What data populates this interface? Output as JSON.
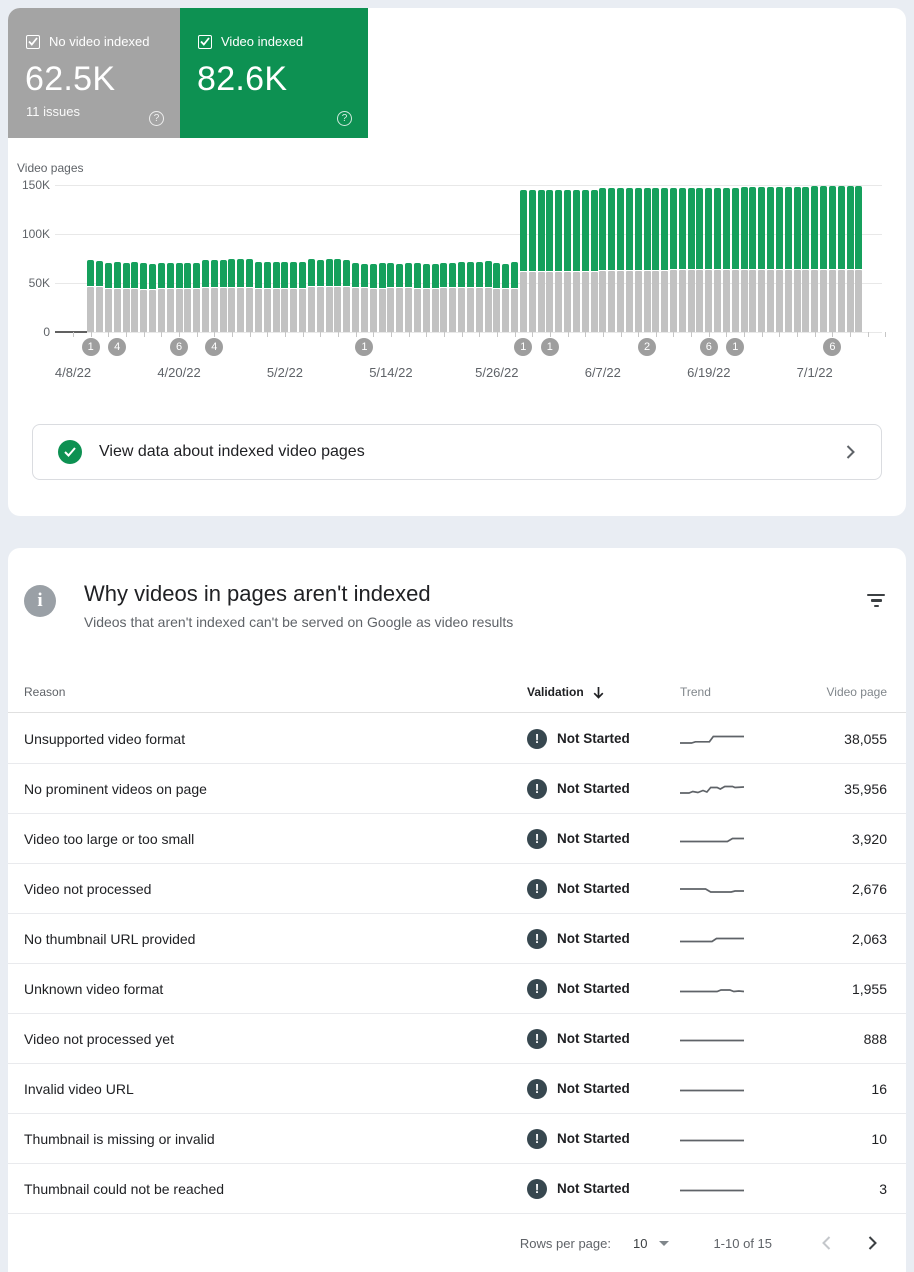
{
  "summary_cards": [
    {
      "label": "No video indexed",
      "value": "62.5K",
      "sub": "11 issues",
      "checked": true,
      "bg": "#a4a4a4"
    },
    {
      "label": "Video indexed",
      "value": "82.6K",
      "sub": "",
      "checked": true,
      "bg": "#0d9152"
    }
  ],
  "chart_data": {
    "type": "bar",
    "stacked": true,
    "title": "Video pages",
    "unit": "thousands of pages",
    "ylim_k": [
      0,
      150
    ],
    "yticks": [
      "150K",
      "100K",
      "50K",
      "0"
    ],
    "x_tick_labels": [
      {
        "day": 0,
        "label": "4/8/22"
      },
      {
        "day": 12,
        "label": "4/20/22"
      },
      {
        "day": 24,
        "label": "5/2/22"
      },
      {
        "day": 36,
        "label": "5/14/22"
      },
      {
        "day": 48,
        "label": "5/26/22"
      },
      {
        "day": 60,
        "label": "6/7/22"
      },
      {
        "day": 72,
        "label": "6/19/22"
      },
      {
        "day": 84,
        "label": "7/1/22"
      }
    ],
    "bars_start_day": 2,
    "series": [
      {
        "name": "No video indexed",
        "color": "#c2c2c2",
        "values_k": [
          46,
          46,
          44,
          44,
          43.5,
          43.5,
          43,
          43,
          43.5,
          43.5,
          43.5,
          43.5,
          43.5,
          44.5,
          44.5,
          45,
          45,
          45,
          45,
          44,
          44,
          44,
          44,
          44,
          44,
          46,
          46,
          46,
          46,
          46,
          44.5,
          44.5,
          44,
          44,
          44.5,
          44.5,
          44.5,
          44,
          44,
          44,
          44.5,
          44.5,
          45,
          45,
          44.5,
          44.5,
          44,
          43.5,
          43.5,
          61,
          61,
          61,
          61,
          61,
          61,
          61,
          61,
          61,
          62.5,
          62.5,
          62.5,
          62.5,
          62.5,
          62.5,
          62.5,
          62.5,
          63,
          63,
          63,
          63,
          63,
          63,
          63,
          63,
          63.5,
          63.5,
          63.5,
          63.5,
          63.5,
          63.5,
          63.5,
          63.5,
          63.5,
          63.5,
          63.5,
          63.5,
          63.5,
          63.5
        ]
      },
      {
        "name": "Video indexed",
        "color": "#15a05c",
        "values_k": [
          26,
          25,
          25.5,
          26,
          26,
          26.5,
          26,
          25.5,
          26,
          26,
          26,
          25.5,
          26,
          28.5,
          28.5,
          28,
          28.5,
          29,
          28.5,
          26.5,
          26.5,
          26,
          26.5,
          26.5,
          26,
          27.5,
          27,
          27.5,
          27.5,
          27,
          24.5,
          24,
          24.5,
          25,
          24.5,
          24,
          24.5,
          25,
          24.5,
          24,
          24.5,
          24.5,
          25,
          25.5,
          26,
          26.5,
          25,
          24.5,
          26.5,
          82.5,
          82.5,
          82.5,
          82.5,
          82.5,
          82.5,
          82.5,
          82.5,
          82.5,
          83,
          83,
          83,
          83,
          83,
          83,
          83,
          83,
          83.5,
          83.5,
          83.5,
          83.5,
          83.5,
          83.5,
          83.5,
          83.5,
          84,
          84,
          84,
          84,
          84,
          84,
          84,
          84,
          84.5,
          84.5,
          84.5,
          84.5,
          84.5,
          84.5
        ]
      }
    ],
    "markers": [
      {
        "day": 2,
        "count": "1"
      },
      {
        "day": 5,
        "count": "4"
      },
      {
        "day": 12,
        "count": "6"
      },
      {
        "day": 16,
        "count": "4"
      },
      {
        "day": 33,
        "count": "1"
      },
      {
        "day": 51,
        "count": "1"
      },
      {
        "day": 54,
        "count": "1"
      },
      {
        "day": 65,
        "count": "2"
      },
      {
        "day": 72,
        "count": "6"
      },
      {
        "day": 75,
        "count": "1"
      },
      {
        "day": 86,
        "count": "6"
      }
    ]
  },
  "banner": {
    "text": "View data about indexed video pages"
  },
  "table_section": {
    "title": "Why videos in pages aren't indexed",
    "subtitle": "Videos that aren't indexed can't be served on Google as video results",
    "columns": {
      "reason": "Reason",
      "validation": "Validation",
      "trend": "Trend",
      "video_page": "Video page"
    },
    "sorted_by": "Validation",
    "rows": [
      {
        "reason": "Unsupported video format",
        "validation": "Not Started",
        "video_pages": "38,055",
        "trend": [
          [
            0,
            12
          ],
          [
            18,
            12
          ],
          [
            24,
            10.8
          ],
          [
            46,
            10.8
          ],
          [
            52,
            5.5
          ],
          [
            100,
            5.5
          ]
        ]
      },
      {
        "reason": "No prominent videos on page",
        "validation": "Not Started",
        "video_pages": "35,956",
        "trend": [
          [
            0,
            12
          ],
          [
            14,
            12
          ],
          [
            20,
            10.5
          ],
          [
            28,
            11.5
          ],
          [
            36,
            9.5
          ],
          [
            42,
            11
          ],
          [
            48,
            6.5
          ],
          [
            58,
            6.5
          ],
          [
            63,
            8
          ],
          [
            70,
            5.5
          ],
          [
            82,
            5.5
          ],
          [
            86,
            6.5
          ],
          [
            100,
            6
          ]
        ]
      },
      {
        "reason": "Video too large or too small",
        "validation": "Not Started",
        "video_pages": "3,920",
        "trend": [
          [
            0,
            10.5
          ],
          [
            74,
            10.5
          ],
          [
            82,
            7.5
          ],
          [
            100,
            7.5
          ]
        ]
      },
      {
        "reason": "Video not processed",
        "validation": "Not Started",
        "video_pages": "2,676",
        "trend": [
          [
            0,
            8
          ],
          [
            40,
            8
          ],
          [
            48,
            11
          ],
          [
            80,
            11
          ],
          [
            86,
            10
          ],
          [
            100,
            10
          ]
        ]
      },
      {
        "reason": "No thumbnail URL provided",
        "validation": "Not Started",
        "video_pages": "2,063",
        "trend": [
          [
            0,
            10.5
          ],
          [
            50,
            10.5
          ],
          [
            57,
            7.5
          ],
          [
            100,
            7.5
          ]
        ]
      },
      {
        "reason": "Unknown video format",
        "validation": "Not Started",
        "video_pages": "1,955",
        "trend": [
          [
            0,
            10.5
          ],
          [
            58,
            10.5
          ],
          [
            64,
            9
          ],
          [
            78,
            9
          ],
          [
            84,
            10.5
          ],
          [
            92,
            10
          ],
          [
            100,
            10.5
          ]
        ]
      },
      {
        "reason": "Video not processed yet",
        "validation": "Not Started",
        "video_pages": "888",
        "trend": [
          [
            0,
            9.5
          ],
          [
            100,
            9.5
          ]
        ]
      },
      {
        "reason": "Invalid video URL",
        "validation": "Not Started",
        "video_pages": "16",
        "trend": [
          [
            0,
            9.5
          ],
          [
            100,
            9.5
          ]
        ]
      },
      {
        "reason": "Thumbnail is missing or invalid",
        "validation": "Not Started",
        "video_pages": "10",
        "trend": [
          [
            0,
            9.5
          ],
          [
            100,
            9.5
          ]
        ]
      },
      {
        "reason": "Thumbnail could not be reached",
        "validation": "Not Started",
        "video_pages": "3",
        "trend": [
          [
            0,
            9.5
          ],
          [
            100,
            9.5
          ]
        ]
      }
    ],
    "footer": {
      "rows_per_page_label": "Rows per page:",
      "rows_per_page": "10",
      "range": "1-10 of 15"
    }
  }
}
